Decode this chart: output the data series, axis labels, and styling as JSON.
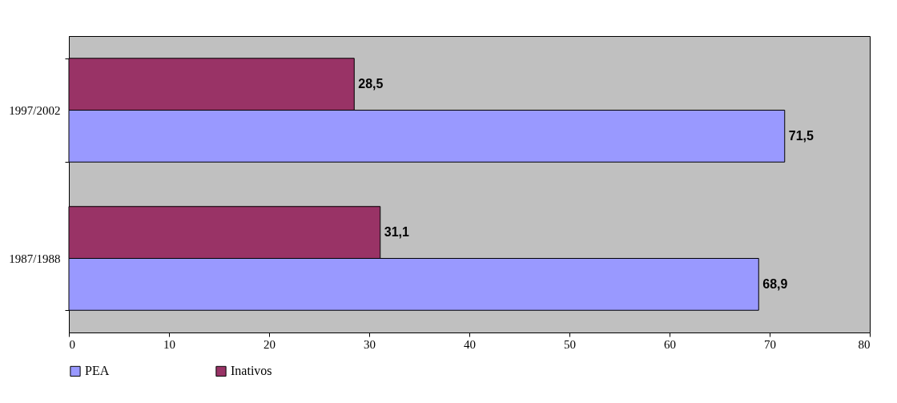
{
  "chart_data": {
    "type": "bar",
    "orientation": "horizontal",
    "categories": [
      "1997/2002",
      "1987/1988"
    ],
    "series": [
      {
        "name": "PEA",
        "color": "#9999ff",
        "values": [
          71.5,
          68.9
        ],
        "value_labels": [
          "71,5",
          "68,9"
        ]
      },
      {
        "name": "Inativos",
        "color": "#993366",
        "values": [
          28.5,
          31.1
        ],
        "value_labels": [
          "28,5",
          "31,1"
        ]
      }
    ],
    "xlim": [
      0,
      80
    ],
    "xticks": [
      0,
      10,
      20,
      30,
      40,
      50,
      60,
      70,
      80
    ],
    "grid": false,
    "legend": "bottom"
  }
}
